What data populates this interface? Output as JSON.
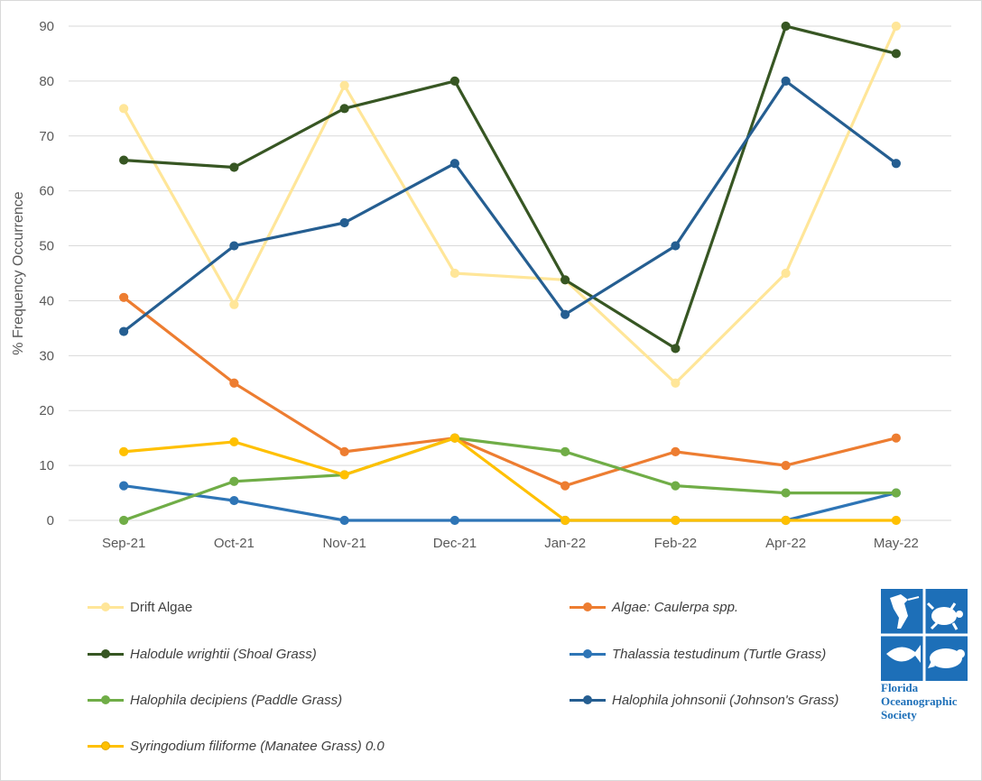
{
  "chart_data": {
    "type": "line",
    "title": "",
    "xlabel": "",
    "ylabel": "% Frequency Occurrence",
    "categories": [
      "Sep-21",
      "Oct-21",
      "Nov-21",
      "Dec-21",
      "Jan-22",
      "Feb-22",
      "Apr-22",
      "May-22"
    ],
    "ylim": [
      0,
      90
    ],
    "yticks": [
      "0",
      "10",
      "20",
      "30",
      "40",
      "50",
      "60",
      "70",
      "80",
      "90"
    ],
    "grid": "horizontal",
    "legend": "bottom",
    "series": [
      {
        "name": "Drift Algae",
        "color": "#ffe699",
        "values": [
          75,
          39.3,
          79.2,
          45,
          43.8,
          25,
          45,
          90
        ]
      },
      {
        "name": "Algae: Caulerpa spp.",
        "color": "#ed7d31",
        "values": [
          40.6,
          25,
          12.5,
          15,
          6.3,
          12.5,
          10,
          15
        ]
      },
      {
        "name": "Halodule wrightii (Shoal Grass)",
        "color": "#375623",
        "values": [
          65.6,
          64.3,
          75,
          80,
          43.8,
          31.3,
          90,
          85
        ]
      },
      {
        "name": "Thalassia testudinum (Turtle Grass)",
        "color": "#2e75b6",
        "values": [
          6.3,
          3.6,
          0,
          0,
          0,
          0,
          0,
          5
        ]
      },
      {
        "name": "Halophila decipiens (Paddle Grass)",
        "color": "#70ad47",
        "values": [
          0,
          7.1,
          8.3,
          15,
          12.5,
          6.3,
          5,
          5
        ]
      },
      {
        "name": "Halophila johnsonii (Johnson's Grass)",
        "color": "#255e91",
        "values": [
          34.4,
          50,
          54.2,
          65,
          37.5,
          50,
          80,
          65
        ]
      },
      {
        "name": "Syringodium filiforme (Manatee Grass) 0.0",
        "color": "#ffc000",
        "values": [
          12.5,
          14.3,
          8.3,
          15,
          0,
          0,
          0,
          0
        ]
      }
    ]
  },
  "legend": {
    "drift": "Drift Algae",
    "caulerpa": "Algae: Caulerpa spp.",
    "shoal": "Halodule wrightii (Shoal Grass)",
    "turtle": "Thalassia testudinum (Turtle Grass)",
    "paddle": "Halophila decipiens (Paddle Grass)",
    "johnson": "Halophila johnsonii (Johnson's Grass)",
    "manatee": "Syringodium filiforme (Manatee Grass) 0.0"
  },
  "logo": {
    "line1": "Florida",
    "line2": "Oceanographic",
    "line3": "Society"
  },
  "colors": {
    "grid": "#d9d9d9",
    "axis_text": "#595959",
    "logo_blue": "#1d6fb8"
  }
}
